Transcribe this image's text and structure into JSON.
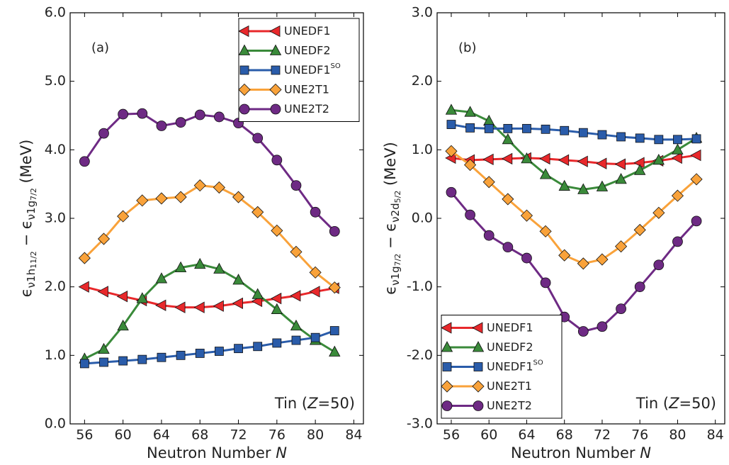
{
  "chart_data": [
    {
      "type": "line",
      "panel_label": "(a)",
      "annotation": [
        {
          "text": "Tin ("
        },
        {
          "text": "Z",
          "italic": true
        },
        {
          "text": "=50)"
        }
      ],
      "x_label": [
        {
          "text": "Neutron Number "
        },
        {
          "text": "N",
          "italic": true
        }
      ],
      "y_label": [
        {
          "text": "ϵ",
          "level": 0
        },
        {
          "text": "ν1h",
          "level": 1
        },
        {
          "text": "11/2",
          "level": 2
        },
        {
          "text": " − ϵ",
          "level": 0
        },
        {
          "text": "ν1g",
          "level": 1
        },
        {
          "text": "7/2",
          "level": 2
        },
        {
          "text": "  (MeV)",
          "level": 0
        }
      ],
      "x": [
        56,
        58,
        60,
        62,
        64,
        66,
        68,
        70,
        72,
        74,
        76,
        78,
        80,
        82
      ],
      "xlim": [
        54.5,
        85
      ],
      "xticks": [
        56,
        60,
        64,
        68,
        72,
        76,
        80,
        84
      ],
      "ylim": [
        0,
        6
      ],
      "yticks": [
        {
          "value": 0,
          "label": "0.0"
        },
        {
          "value": 1,
          "label": "1.0"
        },
        {
          "value": 2,
          "label": "2.0"
        },
        {
          "value": 3,
          "label": "3.0"
        },
        {
          "value": 4,
          "label": "4.0"
        },
        {
          "value": 5,
          "label": "5.0"
        },
        {
          "value": 6,
          "label": "6.0"
        }
      ],
      "legend": "upper right",
      "series": [
        {
          "name": "UNEDF1",
          "color": "#e8282b",
          "marker": "triangle-left",
          "values": [
            2.0,
            1.93,
            1.86,
            1.8,
            1.73,
            1.7,
            1.7,
            1.72,
            1.76,
            1.79,
            1.83,
            1.87,
            1.93,
            1.98
          ]
        },
        {
          "name": "UNEDF2",
          "color": "#3a8a3a",
          "marker": "triangle-up",
          "values": [
            0.95,
            1.09,
            1.43,
            1.83,
            2.12,
            2.28,
            2.33,
            2.26,
            2.1,
            1.89,
            1.67,
            1.43,
            1.22,
            1.05
          ]
        },
        {
          "name": "UNEDF1",
          "name_sup": "SO",
          "color": "#2a5caa",
          "marker": "square",
          "values": [
            0.88,
            0.9,
            0.92,
            0.94,
            0.97,
            1.0,
            1.03,
            1.06,
            1.1,
            1.13,
            1.18,
            1.22,
            1.26,
            1.36
          ]
        },
        {
          "name": "UNE2T1",
          "color": "#f9a23a",
          "marker": "diamond",
          "values": [
            2.42,
            2.7,
            3.03,
            3.26,
            3.29,
            3.31,
            3.48,
            3.45,
            3.31,
            3.09,
            2.82,
            2.51,
            2.21,
            1.99
          ]
        },
        {
          "name": "UNE2T2",
          "color": "#6e2a84",
          "marker": "circle",
          "values": [
            3.83,
            4.24,
            4.52,
            4.53,
            4.35,
            4.4,
            4.51,
            4.48,
            4.39,
            4.17,
            3.85,
            3.48,
            3.09,
            2.81
          ]
        }
      ]
    },
    {
      "type": "line",
      "panel_label": "(b)",
      "annotation": [
        {
          "text": "Tin ("
        },
        {
          "text": "Z",
          "italic": true
        },
        {
          "text": "=50)"
        }
      ],
      "x_label": [
        {
          "text": "Neutron Number "
        },
        {
          "text": "N",
          "italic": true
        }
      ],
      "y_label": [
        {
          "text": "ϵ",
          "level": 0
        },
        {
          "text": "ν1g",
          "level": 1
        },
        {
          "text": "7/2",
          "level": 2
        },
        {
          "text": " − ϵ",
          "level": 0
        },
        {
          "text": "ν2d",
          "level": 1
        },
        {
          "text": "5/2",
          "level": 2
        },
        {
          "text": "  (MeV)",
          "level": 0
        }
      ],
      "x": [
        56,
        58,
        60,
        62,
        64,
        66,
        68,
        70,
        72,
        74,
        76,
        78,
        80,
        82
      ],
      "xlim": [
        54.5,
        85
      ],
      "xticks": [
        56,
        60,
        64,
        68,
        72,
        76,
        80,
        84
      ],
      "ylim": [
        -3,
        3
      ],
      "yticks": [
        {
          "value": -3,
          "label": "-3.0"
        },
        {
          "value": -2,
          "label": "-2.0"
        },
        {
          "value": -1,
          "label": "-1.0"
        },
        {
          "value": 0,
          "label": "0.0"
        },
        {
          "value": 1,
          "label": "1.0"
        },
        {
          "value": 2,
          "label": "2.0"
        },
        {
          "value": 3,
          "label": "3.0"
        }
      ],
      "legend": "lower left",
      "series": [
        {
          "name": "UNEDF1",
          "color": "#e8282b",
          "marker": "triangle-left",
          "values": [
            0.88,
            0.85,
            0.86,
            0.87,
            0.88,
            0.87,
            0.85,
            0.83,
            0.8,
            0.79,
            0.81,
            0.84,
            0.88,
            0.92
          ]
        },
        {
          "name": "UNEDF2",
          "color": "#3a8a3a",
          "marker": "triangle-up",
          "values": [
            1.58,
            1.55,
            1.42,
            1.15,
            0.87,
            0.64,
            0.47,
            0.42,
            0.46,
            0.57,
            0.7,
            0.85,
            1.0,
            1.17
          ]
        },
        {
          "name": "UNEDF1",
          "name_sup": "SO",
          "color": "#2a5caa",
          "marker": "square",
          "values": [
            1.37,
            1.32,
            1.31,
            1.31,
            1.31,
            1.3,
            1.28,
            1.25,
            1.22,
            1.19,
            1.17,
            1.15,
            1.15,
            1.16
          ]
        },
        {
          "name": "UNE2T1",
          "color": "#f9a23a",
          "marker": "diamond",
          "values": [
            0.98,
            0.78,
            0.53,
            0.28,
            0.04,
            -0.19,
            -0.54,
            -0.66,
            -0.6,
            -0.41,
            -0.17,
            0.08,
            0.33,
            0.57
          ]
        },
        {
          "name": "UNE2T2",
          "color": "#6e2a84",
          "marker": "circle",
          "values": [
            0.38,
            0.05,
            -0.25,
            -0.42,
            -0.58,
            -0.94,
            -1.44,
            -1.65,
            -1.58,
            -1.32,
            -1.0,
            -0.68,
            -0.34,
            -0.04
          ]
        }
      ]
    }
  ]
}
